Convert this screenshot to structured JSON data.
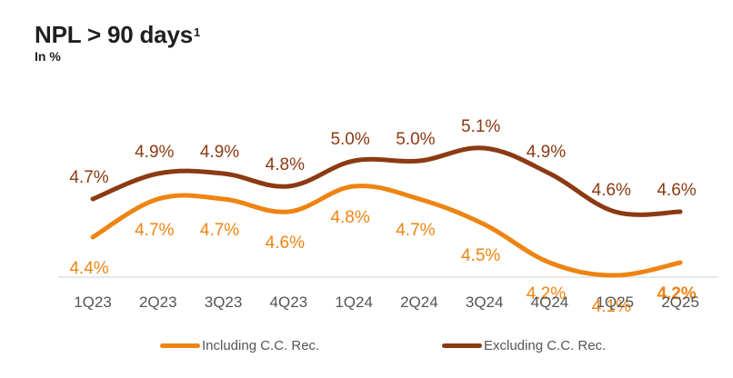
{
  "header": {
    "title": "NPL > 90 days",
    "footnote_mark": "1",
    "subtitle": "In %"
  },
  "colors": {
    "including": "#EE8412",
    "excluding": "#8B3A12",
    "axis": "#d9d9d9"
  },
  "chart_data": {
    "type": "line",
    "title": "NPL > 90 days",
    "subtitle": "In %",
    "categories": [
      "1Q23",
      "2Q23",
      "3Q23",
      "4Q23",
      "1Q24",
      "2Q24",
      "3Q24",
      "4Q24",
      "1Q25",
      "2Q25"
    ],
    "series": [
      {
        "name": "Including C.C. Rec.",
        "values": [
          4.4,
          4.7,
          4.7,
          4.6,
          4.8,
          4.7,
          4.5,
          4.2,
          4.1,
          4.2
        ],
        "labels": [
          "4.4%",
          "4.7%",
          "4.7%",
          "4.6%",
          "4.8%",
          "4.7%",
          "4.5%",
          "4.2%",
          "4.1%",
          "4.2%"
        ],
        "color": "#EE8412",
        "label_position": "below",
        "last_label_bold": true
      },
      {
        "name": "Excluding C.C. Rec.",
        "values": [
          4.7,
          4.9,
          4.9,
          4.8,
          5.0,
          5.0,
          5.1,
          4.9,
          4.6,
          4.6
        ],
        "labels": [
          "4.7%",
          "4.9%",
          "4.9%",
          "4.8%",
          "5.0%",
          "5.0%",
          "5.1%",
          "4.9%",
          "4.6%",
          "4.6%"
        ],
        "color": "#8B3A12",
        "label_position": "above",
        "last_label_bold": false
      }
    ],
    "legend": "bottom-center",
    "grid": false,
    "xlabel": "",
    "ylabel": ""
  },
  "legend": {
    "items": [
      {
        "label": "Including C.C. Rec.",
        "color": "#EE8412"
      },
      {
        "label": "Excluding C.C. Rec.",
        "color": "#8B3A12"
      }
    ]
  }
}
